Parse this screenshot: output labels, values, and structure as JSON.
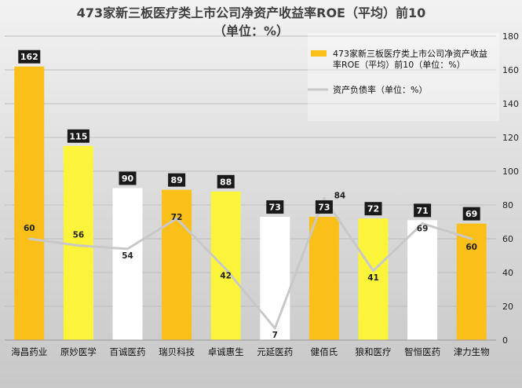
{
  "chart_data": {
    "type": "bar",
    "title_line1": "473家新三板医疗类上市公司净资产收益率ROE（平均）前10",
    "title_line2": "（单位：%）",
    "categories": [
      "海昌药业",
      "原妙医学",
      "百诚医药",
      "瑞贝科技",
      "卓诚惠生",
      "元延医药",
      "健佰氏",
      "狼和医疗",
      "智恒医药",
      "津力生物"
    ],
    "series": [
      {
        "name_line1": "473家新三板医疗类上市公司净资产收益",
        "name_line2": "率ROE（平均）前10（单位：%）",
        "type": "bar",
        "values": [
          162,
          115,
          90,
          89,
          88,
          73,
          73,
          72,
          71,
          69
        ],
        "bar_colors": [
          "#fbbf1a",
          "#fbf43a",
          "#ffffff",
          "#fbbf1a",
          "#fbf43a",
          "#ffffff",
          "#fbbf1a",
          "#fbf43a",
          "#ffffff",
          "#fbbf1a"
        ],
        "data_labels": [
          "162",
          "115",
          "90",
          "89",
          "88",
          "73",
          "73",
          "72",
          "71",
          "69"
        ]
      },
      {
        "name": "资产负债率（单位：%）",
        "type": "line",
        "values": [
          60,
          56,
          54,
          72,
          42,
          7,
          84,
          41,
          69,
          60
        ],
        "color": "#c8c8c8",
        "data_labels": [
          "60",
          "56",
          "54",
          "72",
          "42",
          "7",
          "84",
          "41",
          "69",
          "60"
        ]
      }
    ],
    "y_axis": {
      "side": "right",
      "min": 0,
      "max": 180,
      "ticks": [
        "0",
        "20",
        "40",
        "60",
        "80",
        "100",
        "120",
        "140",
        "160",
        "180"
      ]
    },
    "grid": true,
    "legend_position": "top-right",
    "colors": {
      "bar_orange": "#fbbf1a",
      "bar_yellow": "#fbf43a",
      "bar_white": "#ffffff",
      "line_gray": "#c8c8c8",
      "label_box": "#1a1a1a"
    }
  }
}
